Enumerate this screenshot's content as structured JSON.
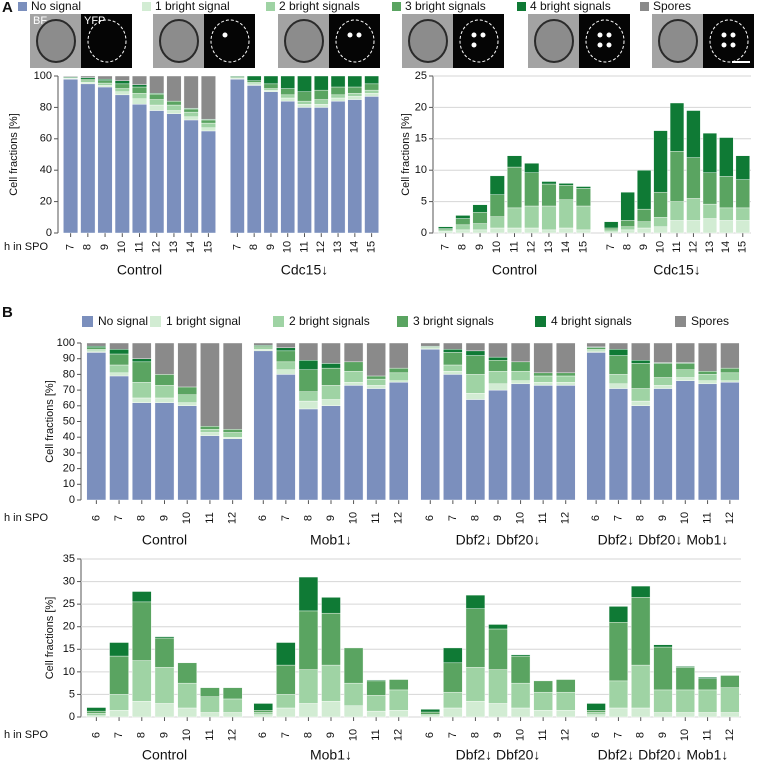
{
  "panel_labels": [
    "A",
    "B"
  ],
  "image_labels": [
    "BF",
    "YFP"
  ],
  "chart_data": [
    {
      "type": "bar",
      "stacked": true,
      "ylabel": "Cell fractions [%]",
      "xlabel": "h in SPO",
      "ylim": [
        0,
        100
      ],
      "yticks": [
        0,
        20,
        40,
        60,
        80,
        100
      ],
      "grid": false,
      "groups": [
        {
          "label": "Control",
          "categories": [
            7,
            8,
            9,
            10,
            11,
            12,
            13,
            14,
            15
          ]
        },
        {
          "label": "Cdc15↓",
          "categories": [
            7,
            8,
            9,
            10,
            11,
            12,
            13,
            14,
            15
          ]
        }
      ],
      "series": [
        {
          "name": "No signal",
          "color": "#7b8fbd",
          "values": [
            98,
            95,
            93,
            88,
            82,
            78,
            76,
            72,
            65,
            98,
            94,
            90,
            84,
            80,
            80,
            84,
            85,
            87
          ]
        },
        {
          "name": "1 bright signal",
          "color": "#d2ecd3",
          "values": [
            0.5,
            1,
            1,
            2,
            3.5,
            3.5,
            2,
            2,
            2,
            0.5,
            1,
            1,
            2,
            2,
            2,
            2,
            2,
            2
          ]
        },
        {
          "name": "2 bright signals",
          "color": "#9fd3a4",
          "values": [
            0.3,
            1,
            1.5,
            2,
            3.5,
            3.5,
            3.5,
            3,
            3,
            0.5,
            1,
            1,
            2,
            2,
            3,
            2,
            2,
            2
          ]
        },
        {
          "name": "3 bright signals",
          "color": "#5aa461",
          "values": [
            0.2,
            1,
            1.5,
            3,
            4,
            3.5,
            2.5,
            2,
            2,
            0.5,
            1,
            3,
            4,
            6,
            6,
            5,
            4,
            4
          ]
        },
        {
          "name": "4 bright signals",
          "color": "#0f7a35",
          "values": [
            0.5,
            1,
            1,
            2,
            1.5,
            0.5,
            0,
            0.5,
            0.5,
            0.5,
            3,
            5,
            8,
            10,
            9,
            7,
            7,
            5
          ]
        },
        {
          "name": "Spores",
          "color": "#8a8a8a",
          "values": [
            0.5,
            1,
            2,
            3,
            5.5,
            11,
            16,
            20.5,
            27.5,
            0,
            0,
            0,
            0,
            0,
            0,
            0,
            0,
            0
          ]
        }
      ]
    },
    {
      "type": "bar",
      "stacked": true,
      "ylabel": "Cell fractions [%]",
      "ylim": [
        0,
        25
      ],
      "yticks": [
        0,
        5,
        10,
        15,
        20,
        25
      ],
      "grid": true,
      "groups": [
        {
          "label": "Control",
          "categories": [
            7,
            8,
            9,
            10,
            11,
            12,
            13,
            14,
            15
          ]
        },
        {
          "label": "Cdc15↓",
          "categories": [
            7,
            8,
            9,
            10,
            11,
            12,
            13,
            14,
            15
          ]
        }
      ],
      "series": [
        {
          "color": "#d2ecd3",
          "values": [
            0.3,
            0.5,
            0.5,
            0.8,
            0.8,
            0.8,
            0.5,
            0.8,
            0.5,
            0.2,
            0.5,
            0.8,
            1,
            2,
            2,
            2.3,
            2,
            2
          ]
        },
        {
          "color": "#9fd3a4",
          "values": [
            0.2,
            0.8,
            1,
            1.8,
            3.2,
            3.5,
            3.8,
            4.5,
            3.8,
            0.3,
            0.5,
            1,
            1.5,
            3,
            3.5,
            2.3,
            2,
            2
          ]
        },
        {
          "color": "#5aa461",
          "values": [
            0.2,
            1,
            1.8,
            3.5,
            6.5,
            5.3,
            3.5,
            2.3,
            2.8,
            0.3,
            1,
            2,
            4,
            8,
            6.5,
            5,
            5,
            4.5
          ]
        },
        {
          "color": "#0f7a35",
          "values": [
            0.3,
            0.5,
            1.2,
            3,
            1.8,
            1.5,
            0.4,
            0.3,
            0.3,
            1,
            4.5,
            6.2,
            9.8,
            7.7,
            7.5,
            6.3,
            6.2,
            3.8
          ]
        }
      ]
    },
    {
      "type": "bar",
      "stacked": true,
      "ylabel": "Cell fractions [%]",
      "xlabel": "h in SPO",
      "ylim": [
        0,
        100
      ],
      "yticks": [
        0,
        10,
        20,
        30,
        40,
        50,
        60,
        70,
        80,
        90,
        100
      ],
      "grid": false,
      "groups": [
        {
          "label": "Control",
          "categories": [
            6,
            7,
            8,
            9,
            10,
            11,
            12
          ]
        },
        {
          "label": "Mob1↓",
          "categories": [
            6,
            7,
            8,
            9,
            10,
            11,
            12
          ]
        },
        {
          "label": "Dbf2↓ Dbf20↓",
          "categories": [
            6,
            7,
            8,
            9,
            10,
            11,
            12
          ]
        },
        {
          "label": "Dbf2↓ Dbf20↓ Mob1↓",
          "categories": [
            6,
            7,
            8,
            9,
            10,
            11,
            12
          ]
        }
      ],
      "series": [
        {
          "name": "No signal",
          "color": "#7b8fbd",
          "values": [
            94,
            79,
            62,
            62,
            60,
            41,
            39,
            95,
            80,
            58,
            60,
            73,
            71,
            75,
            96,
            80,
            64,
            70,
            74,
            73,
            73,
            94,
            71,
            60,
            71,
            76,
            74,
            75
          ]
        },
        {
          "name": "1 bright signal",
          "color": "#d2ecd3",
          "values": [
            1,
            2,
            3,
            3,
            2,
            2,
            1,
            1,
            3,
            5,
            4,
            2,
            2,
            1,
            0.5,
            2,
            4,
            4,
            2,
            2,
            2,
            1,
            3,
            3,
            2,
            2,
            2,
            1
          ]
        },
        {
          "name": "2 bright signals",
          "color": "#9fd3a4",
          "values": [
            1,
            5,
            10,
            8,
            5,
            2,
            3,
            1,
            5,
            6,
            9,
            7,
            4,
            5,
            0.5,
            4,
            12,
            8,
            6,
            4,
            4,
            1,
            6,
            8,
            5,
            5,
            4,
            5
          ]
        },
        {
          "name": "3 bright signals",
          "color": "#5aa461",
          "values": [
            1,
            7,
            13,
            7,
            5,
            2,
            2,
            1,
            7,
            14,
            11,
            6,
            2,
            3,
            0.5,
            8,
            12,
            7,
            6,
            2,
            2,
            1,
            12,
            16,
            9,
            4,
            2,
            3
          ]
        },
        {
          "name": "4 bright signals",
          "color": "#0f7a35",
          "values": [
            1,
            3,
            2,
            0,
            0,
            0,
            0,
            0.5,
            2,
            6,
            3,
            0,
            0,
            0,
            0.5,
            2,
            3,
            2,
            0,
            0,
            0,
            0.5,
            4,
            2,
            0.5,
            0.5,
            0,
            0
          ]
        },
        {
          "name": "Spores",
          "color": "#8a8a8a",
          "values": [
            2,
            4,
            10,
            20,
            28,
            53,
            55,
            1.5,
            3,
            11,
            13,
            12,
            21,
            16,
            2,
            4,
            5,
            9,
            12,
            19,
            19,
            2.5,
            4,
            11,
            12.5,
            12.5,
            18,
            16
          ]
        }
      ]
    },
    {
      "type": "bar",
      "stacked": true,
      "ylabel": "Cell fractions [%]",
      "xlabel": "h in SPO",
      "ylim": [
        0,
        35
      ],
      "yticks": [
        0,
        5,
        10,
        15,
        20,
        25,
        30,
        35
      ],
      "grid": true,
      "groups": [
        {
          "label": "Control",
          "categories": [
            6,
            7,
            8,
            9,
            10,
            11,
            12
          ]
        },
        {
          "label": "Mob1↓",
          "categories": [
            6,
            7,
            8,
            9,
            10,
            11,
            12
          ]
        },
        {
          "label": "Dbf2↓ Dbf20↓",
          "categories": [
            6,
            7,
            8,
            9,
            10,
            11,
            12
          ]
        },
        {
          "label": "Dbf2↓ Dbf20↓ Mob1↓",
          "categories": [
            6,
            7,
            8,
            9,
            10,
            11,
            12
          ]
        }
      ],
      "series": [
        {
          "color": "#d2ecd3",
          "values": [
            0.3,
            1.5,
            3.5,
            3,
            2,
            1,
            1,
            0.5,
            2,
            3,
            3.5,
            2.5,
            1.3,
            1.5,
            0.3,
            2,
            3.5,
            3,
            2,
            1.5,
            1.5,
            0.5,
            2,
            2,
            1,
            1,
            1,
            1
          ]
        },
        {
          "color": "#9fd3a4",
          "values": [
            0.5,
            3.5,
            9,
            8,
            5.5,
            3.5,
            3,
            0.5,
            3,
            7.5,
            8,
            5,
            3.5,
            4.5,
            0.3,
            3.5,
            7.5,
            7.5,
            5.5,
            4,
            4,
            0.5,
            6,
            9.5,
            5,
            5,
            5,
            5.5
          ]
        },
        {
          "color": "#5aa461",
          "values": [
            0.5,
            8.5,
            13,
            6.5,
            4.5,
            2,
            2.5,
            0.5,
            6.5,
            13,
            11.5,
            7.8,
            3.2,
            2.3,
            0.5,
            6.5,
            13,
            9,
            6,
            2.5,
            2.8,
            0.5,
            13,
            15,
            9.5,
            5,
            2.5,
            2.7
          ]
        },
        {
          "color": "#0f7a35",
          "values": [
            0.8,
            3,
            2.3,
            0.3,
            0,
            0,
            0,
            1.5,
            5,
            7.5,
            3.5,
            0,
            0.2,
            0,
            0.6,
            3.3,
            3,
            1,
            0.3,
            0,
            0,
            1.5,
            3.5,
            2.5,
            0.5,
            0.2,
            0.3,
            0
          ]
        }
      ]
    }
  ]
}
